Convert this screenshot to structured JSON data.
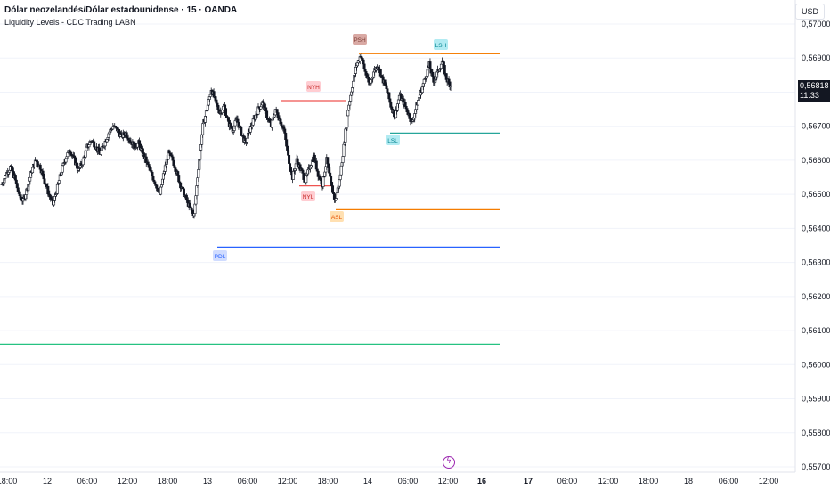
{
  "header": {
    "title": "Dólar neozelandés/Dólar estadounidense · 15 · OANDA",
    "indicator": "Liquidity Levels - CDC Trading LABN",
    "currency": "USD"
  },
  "last_price": {
    "value": "0,56818",
    "countdown": "11:33"
  },
  "icons": {
    "event": "lightning-icon"
  },
  "chart_data": {
    "type": "candlestick",
    "y_ticks": [
      "0,57000",
      "0,56900",
      "0,56800",
      "0,56700",
      "0,56600",
      "0,56500",
      "0,56400",
      "0,56300",
      "0,56200",
      "0,56100",
      "0,56000",
      "0,55900",
      "0,55800",
      "0,55700"
    ],
    "ylim": [
      0.5568,
      0.5702
    ],
    "x_ticks": [
      "18:00",
      "12",
      "06:00",
      "12:00",
      "18:00",
      "13",
      "06:00",
      "12:00",
      "18:00",
      "14",
      "06:00",
      "12:00",
      "16",
      "17",
      "06:00",
      "12:00",
      "18:00",
      "18",
      "06:00",
      "12:00"
    ],
    "current_price": 0.56818,
    "levels": [
      {
        "label": "PSH",
        "price": 0.56913,
        "color": "#f57c00",
        "tag_bg": "#d9a9a4",
        "tag_fg": "#7a3b33"
      },
      {
        "label": "LSH",
        "price": 0.56913,
        "color": "#f57c00",
        "tag_bg": "#b2ebf2",
        "tag_fg": "#00838f"
      },
      {
        "label": "NYH",
        "price": 0.56775,
        "color": "#ef5350",
        "tag_bg": "#ffcdd2",
        "tag_fg": "#c62828"
      },
      {
        "label": "LSL",
        "price": 0.5668,
        "color": "#26a69a",
        "tag_bg": "#b2ebf2",
        "tag_fg": "#00838f"
      },
      {
        "label": "NYL",
        "price": 0.56525,
        "color": "#ef5350",
        "tag_bg": "#ffcdd2",
        "tag_fg": "#c62828"
      },
      {
        "label": "ASL",
        "price": 0.56455,
        "color": "#f57c00",
        "tag_bg": "#ffe0b2",
        "tag_fg": "#e65100"
      },
      {
        "label": "PDL",
        "price": 0.56345,
        "color": "#2962ff",
        "tag_bg": "#d0dcff",
        "tag_fg": "#2962ff"
      },
      {
        "label": "",
        "price": 0.5606,
        "color": "#26c281"
      }
    ],
    "price_path": [
      0.5653,
      0.5656,
      0.5658,
      0.5655,
      0.565,
      0.5648,
      0.5652,
      0.5657,
      0.566,
      0.5658,
      0.5654,
      0.565,
      0.5647,
      0.5652,
      0.5657,
      0.5661,
      0.5663,
      0.566,
      0.5657,
      0.566,
      0.5664,
      0.5666,
      0.5664,
      0.5662,
      0.5665,
      0.5668,
      0.567,
      0.5669,
      0.5667,
      0.5668,
      0.5666,
      0.5664,
      0.5665,
      0.5662,
      0.5659,
      0.5656,
      0.5653,
      0.565,
      0.5657,
      0.5662,
      0.566,
      0.5656,
      0.5652,
      0.5649,
      0.5646,
      0.5644,
      0.5658,
      0.567,
      0.5675,
      0.5681,
      0.5677,
      0.5674,
      0.5676,
      0.5671,
      0.5669,
      0.5672,
      0.5668,
      0.5665,
      0.5669,
      0.5672,
      0.5675,
      0.5677,
      0.5673,
      0.567,
      0.5675,
      0.5672,
      0.5669,
      0.5661,
      0.5655,
      0.566,
      0.5657,
      0.5654,
      0.5658,
      0.5661,
      0.5656,
      0.5653,
      0.566,
      0.5653,
      0.5648,
      0.5654,
      0.5664,
      0.5675,
      0.5682,
      0.5688,
      0.5691,
      0.5686,
      0.5682,
      0.5686,
      0.5688,
      0.5684,
      0.5681,
      0.5676,
      0.5673,
      0.5679,
      0.5677,
      0.5674,
      0.5671,
      0.5676,
      0.568,
      0.5684,
      0.5688,
      0.5683,
      0.5686,
      0.5689,
      0.5684,
      0.5682
    ]
  }
}
